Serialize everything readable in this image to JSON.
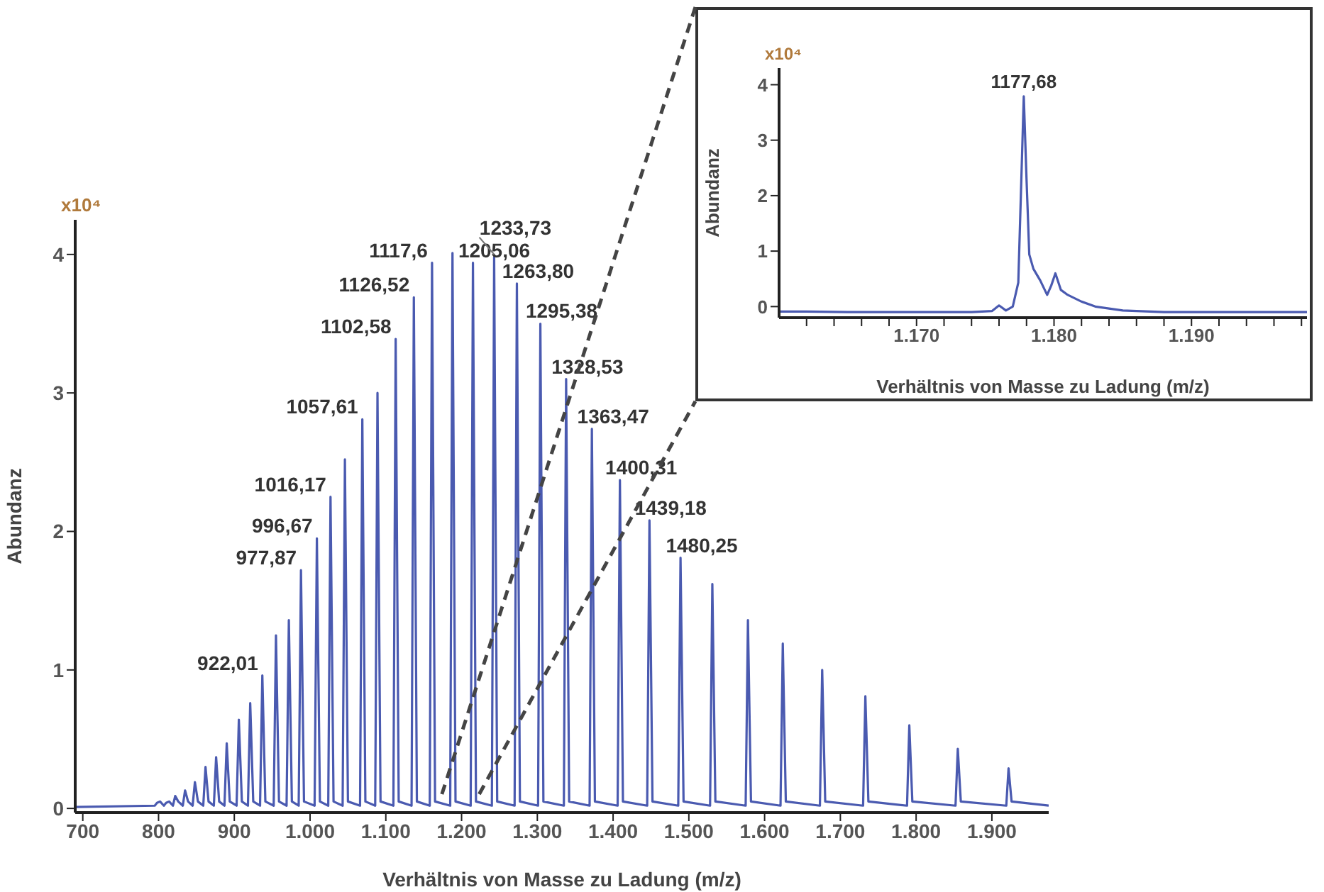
{
  "chart_data": [
    {
      "type": "line",
      "xlabel": "Verhältnis von Masse zu Ladung (m/z)",
      "ylabel": "Abundanz",
      "marker": "none",
      "line_style": "solid",
      "xlim": [
        690,
        1975
      ],
      "ylim": [
        -0.03,
        4.25
      ],
      "xticks": [
        700,
        800,
        900,
        {
          "value": 1000,
          "label": "1.000"
        },
        {
          "value": 1100,
          "label": "1.100"
        },
        {
          "value": 1200,
          "label": "1.200"
        },
        {
          "value": 1300,
          "label": "1.300"
        },
        {
          "value": 1400,
          "label": "1.400"
        },
        {
          "value": 1500,
          "label": "1.500"
        },
        {
          "value": 1600,
          "label": "1.600"
        },
        {
          "value": 1700,
          "label": "1.700"
        },
        {
          "value": 1800,
          "label": "1.800"
        },
        {
          "value": 1900,
          "label": "1.900"
        }
      ],
      "yticks": [
        0,
        1,
        2,
        3,
        4
      ],
      "x": [
        690,
        795,
        798,
        802,
        807,
        810,
        814,
        819,
        822,
        826,
        832,
        835,
        839,
        845,
        848,
        852,
        859,
        862,
        866,
        873,
        876,
        880,
        887,
        890,
        894,
        903,
        906,
        910,
        918,
        921,
        925,
        934,
        937,
        941,
        952,
        955,
        959,
        969,
        972,
        976,
        985,
        988,
        992,
        1006,
        1009,
        1013,
        1024,
        1027,
        1031,
        1043,
        1046,
        1050,
        1066,
        1069,
        1073,
        1086,
        1089,
        1093,
        1110,
        1113,
        1117,
        1134,
        1137,
        1141,
        1158,
        1161,
        1165,
        1185,
        1188,
        1192,
        1212,
        1215,
        1219,
        1240,
        1243,
        1247,
        1270,
        1273,
        1277,
        1301,
        1304,
        1308,
        1335,
        1338,
        1342,
        1369,
        1372,
        1376,
        1406,
        1409,
        1413,
        1445,
        1448,
        1452,
        1486,
        1489,
        1493,
        1528,
        1531,
        1535,
        1575,
        1578,
        1582,
        1621,
        1624,
        1628,
        1673,
        1676,
        1680,
        1730,
        1733,
        1737,
        1788,
        1791,
        1795,
        1852,
        1855,
        1859,
        1919,
        1922,
        1926,
        1975
      ],
      "series": [
        {
          "color": "#4a5ab0",
          "values": [
            0.01,
            0.02,
            0.04,
            0.05,
            0.02,
            0.04,
            0.05,
            0.02,
            0.09,
            0.05,
            0.02,
            0.13,
            0.05,
            0.02,
            0.19,
            0.05,
            0.02,
            0.3,
            0.05,
            0.02,
            0.37,
            0.05,
            0.02,
            0.47,
            0.05,
            0.02,
            0.64,
            0.05,
            0.02,
            0.76,
            0.05,
            0.02,
            0.96,
            0.05,
            0.02,
            1.25,
            0.05,
            0.02,
            1.36,
            0.05,
            0.02,
            1.72,
            0.05,
            0.02,
            1.95,
            0.05,
            0.02,
            2.25,
            0.05,
            0.02,
            2.52,
            0.05,
            0.02,
            2.81,
            0.05,
            0.02,
            3.0,
            0.05,
            0.02,
            3.39,
            0.05,
            0.02,
            3.69,
            0.05,
            0.02,
            3.94,
            0.05,
            0.02,
            4.01,
            0.05,
            0.02,
            3.94,
            0.05,
            0.02,
            3.98,
            0.05,
            0.02,
            3.79,
            0.05,
            0.02,
            3.5,
            0.05,
            0.02,
            3.1,
            0.05,
            0.02,
            2.74,
            0.05,
            0.02,
            2.37,
            0.05,
            0.02,
            2.08,
            0.05,
            0.02,
            1.81,
            0.05,
            0.02,
            1.62,
            0.05,
            0.02,
            1.36,
            0.05,
            0.02,
            1.19,
            0.05,
            0.02,
            1.0,
            0.05,
            0.02,
            0.81,
            0.05,
            0.02,
            0.6,
            0.05,
            0.02,
            0.43,
            0.05,
            0.02,
            0.29,
            0.05,
            0.02
          ]
        }
      ],
      "annotations": [
        "x10⁴",
        {
          "text": "922,01",
          "x": 937,
          "y": 0.96
        },
        {
          "text": "977,87",
          "x": 988,
          "y": 1.72
        },
        {
          "text": "996,67",
          "x": 1009,
          "y": 1.95
        },
        {
          "text": "1016,17",
          "x": 1027,
          "y": 2.25
        },
        {
          "text": "1057,61",
          "x": 1069,
          "y": 2.81
        },
        {
          "text": "1102,58",
          "x": 1113,
          "y": 3.39
        },
        {
          "text": "1126,52",
          "x": 1137,
          "y": 3.69
        },
        {
          "text": "1117,6",
          "x": 1161,
          "y": 3.94
        },
        {
          "text": "1205,06",
          "x": 1215,
          "y": 3.94
        },
        {
          "text": "1233,73",
          "x": 1243,
          "y": 3.98
        },
        {
          "text": "1263,80",
          "x": 1273,
          "y": 3.79
        },
        {
          "text": "1295,38",
          "x": 1304,
          "y": 3.5
        },
        {
          "text": "1328,53",
          "x": 1338,
          "y": 3.1
        },
        {
          "text": "1363,47",
          "x": 1372,
          "y": 2.74
        },
        {
          "text": "1400,31",
          "x": 1409,
          "y": 2.37
        },
        {
          "text": "1439,18",
          "x": 1448,
          "y": 2.08
        },
        {
          "text": "1480,25",
          "x": 1489,
          "y": 1.81
        }
      ]
    },
    {
      "type": "line",
      "xlabel": "Verhältnis von Masse zu Ladung (m/z)",
      "ylabel": "Abundanz",
      "marker": "none",
      "line_style": "solid",
      "xlim": [
        1160,
        1198.4
      ],
      "ylim": [
        -0.2,
        4.3
      ],
      "xticks": [
        {
          "value": 1162,
          "label": null
        },
        {
          "value": 1164,
          "label": null
        },
        {
          "value": 1166,
          "label": null
        },
        {
          "value": 1168,
          "label": null
        },
        {
          "value": 1170,
          "label": "1.170"
        },
        {
          "value": 1172,
          "label": null
        },
        {
          "value": 1174,
          "label": null
        },
        {
          "value": 1176,
          "label": null
        },
        {
          "value": 1178,
          "label": null
        },
        {
          "value": 1180,
          "label": "1.180"
        },
        {
          "value": 1182,
          "label": null
        },
        {
          "value": 1184,
          "label": null
        },
        {
          "value": 1186,
          "label": null
        },
        {
          "value": 1188,
          "label": null
        },
        {
          "value": 1190,
          "label": "1.190"
        },
        {
          "value": 1192,
          "label": null
        },
        {
          "value": 1194,
          "label": null
        },
        {
          "value": 1196,
          "label": null
        },
        {
          "value": 1198,
          "label": null
        }
      ],
      "yticks": [
        0,
        1,
        2,
        3,
        4
      ],
      "x": [
        1160,
        1162,
        1165,
        1170,
        1174,
        1175.5,
        1176,
        1176.5,
        1177,
        1177.4,
        1177.6,
        1177.8,
        1178,
        1178.2,
        1178.5,
        1179,
        1179.5,
        1179.8,
        1180.1,
        1180.5,
        1181,
        1182,
        1183,
        1185,
        1188,
        1192,
        1198.4
      ],
      "series": [
        {
          "color": "#4a5ab0",
          "values": [
            -0.09,
            -0.09,
            -0.1,
            -0.1,
            -0.1,
            -0.08,
            0.02,
            -0.07,
            0,
            0.43,
            2.1,
            3.79,
            2.3,
            0.94,
            0.68,
            0.47,
            0.21,
            0.38,
            0.6,
            0.3,
            0.21,
            0.09,
            0,
            -0.07,
            -0.1,
            -0.1,
            -0.1
          ]
        }
      ],
      "annotations": [
        "x10⁴",
        {
          "text": "1177,68",
          "x": 1177.8,
          "y": 3.79
        }
      ]
    }
  ]
}
